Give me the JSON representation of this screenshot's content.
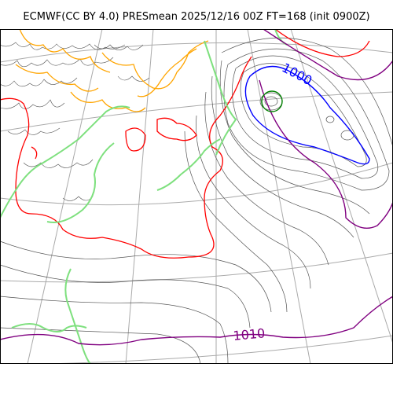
{
  "figure": {
    "title": "ECMWF(CC BY 4.0) PRESmean 2025/12/16 00Z FT=168 (init 0900Z)"
  },
  "contour_labels": [
    {
      "text": "1000",
      "color": "#0000ff"
    },
    {
      "text": "1010",
      "color": "#800080"
    }
  ],
  "colors": {
    "isobar": "#555555",
    "coast": "#7ee07e",
    "red_line": "#ff0000",
    "orange_line": "#ffa500",
    "blue_1000": "#0000ff",
    "purple_1010": "#800080",
    "low_center": "#008000",
    "grid": "#aaaaaa",
    "frame": "#000000"
  }
}
